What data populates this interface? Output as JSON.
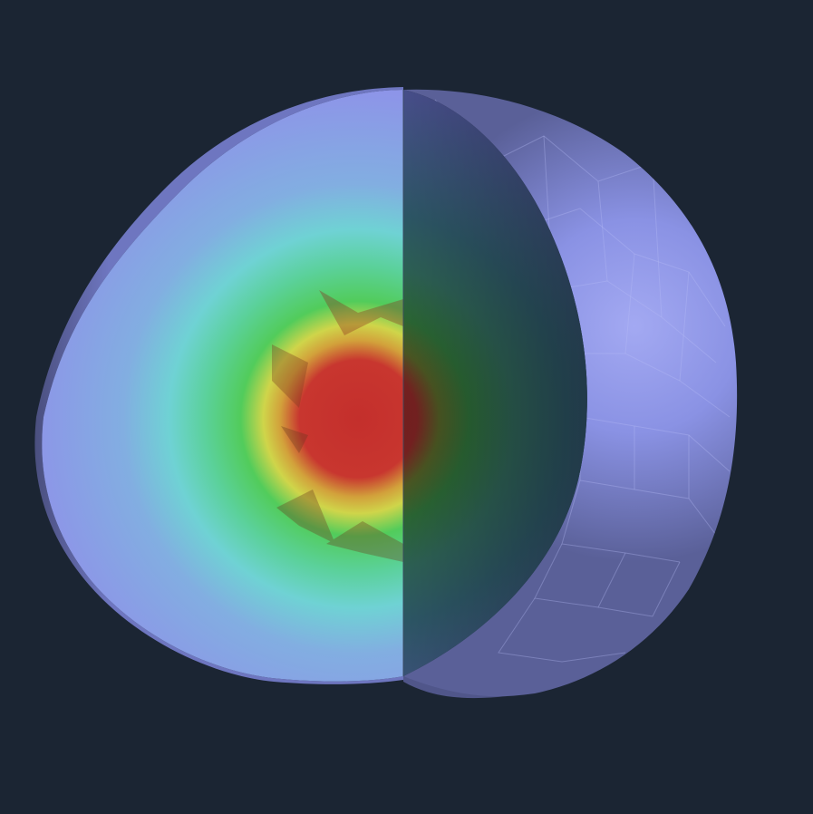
{
  "scene": {
    "background_color": "#1b2533",
    "object": "sphere-cutaway-heatmap",
    "shell_color": "#8b93e6",
    "colormap": [
      "#8f97e8",
      "#6fd3d6",
      "#4fcf6a",
      "#d6d84a",
      "#c83a32"
    ],
    "interior_shadow_color": "#2f4f5f",
    "core_color": "#c8322e"
  }
}
